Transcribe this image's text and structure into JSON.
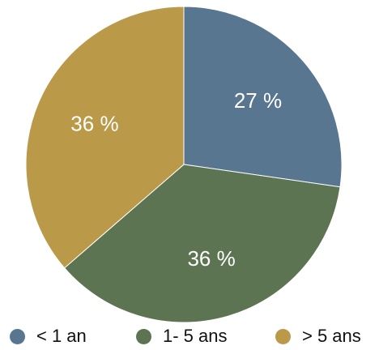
{
  "chart_data": {
    "type": "pie",
    "categories": [
      "< 1 an",
      "1- 5 ans",
      "> 5 ans"
    ],
    "values": [
      27,
      36,
      36
    ],
    "labels": [
      "27 %",
      "36 %",
      "36 %"
    ],
    "colors": [
      "#58768f",
      "#5d7452",
      "#ba9a48"
    ],
    "start_angle_deg": 0,
    "direction": "clockwise",
    "legend_position": "bottom",
    "title": ""
  }
}
